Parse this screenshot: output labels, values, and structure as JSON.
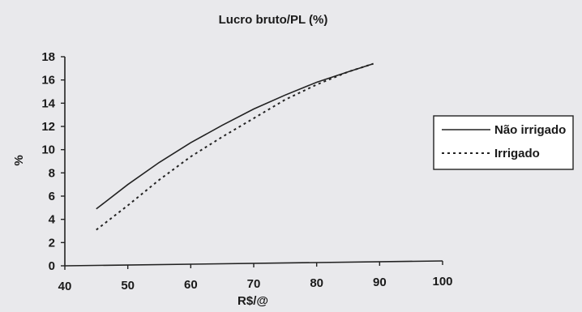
{
  "chart_data": {
    "type": "line",
    "title": "Lucro bruto/PL (%)",
    "xlabel": "R$/@",
    "ylabel": "%",
    "xlim": [
      40,
      100
    ],
    "ylim": [
      0,
      18
    ],
    "x_ticks": [
      "40",
      "50",
      "60",
      "70",
      "80",
      "90",
      "100"
    ],
    "y_ticks": [
      "0",
      "2",
      "4",
      "6",
      "8",
      "10",
      "12",
      "14",
      "16",
      "18"
    ],
    "grid": false,
    "legend_position": "right",
    "series": [
      {
        "name": "Não irrigado",
        "style": "solid",
        "color": "#222222",
        "x": [
          45,
          50,
          55,
          60,
          65,
          70,
          75,
          80,
          85,
          89
        ],
        "y": [
          4.9,
          7.0,
          8.9,
          10.6,
          12.1,
          13.5,
          14.7,
          15.8,
          16.7,
          17.4
        ]
      },
      {
        "name": "Irrigado",
        "style": "dotted",
        "color": "#222222",
        "x": [
          45,
          50,
          55,
          60,
          65,
          70,
          75,
          80,
          85,
          89
        ],
        "y": [
          3.1,
          5.2,
          7.4,
          9.4,
          11.1,
          12.7,
          14.3,
          15.6,
          16.7,
          17.4
        ]
      }
    ]
  }
}
